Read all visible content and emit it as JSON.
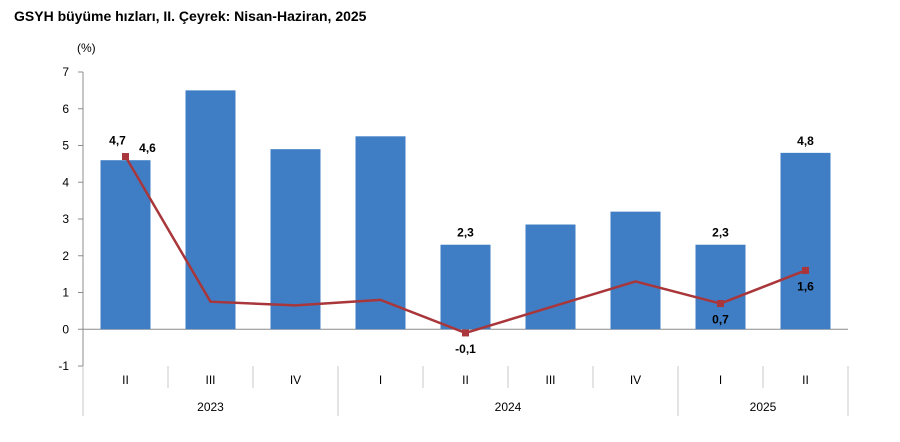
{
  "chart_data": {
    "type": "bar",
    "title": "GSYH büyüme hızları, II. Çeyrek: Nisan-Haziran, 2025",
    "ylabel": "(%)",
    "xlabel": "",
    "ylim": [
      -1,
      7
    ],
    "yticks": [
      "-1",
      "0",
      "1",
      "2",
      "3",
      "4",
      "5",
      "6",
      "7"
    ],
    "grid": false,
    "legend": "none",
    "categories": [
      "II",
      "III",
      "IV",
      "I",
      "II",
      "III",
      "IV",
      "I",
      "II"
    ],
    "year_groups": [
      {
        "label": "2023",
        "count": 3
      },
      {
        "label": "2024",
        "count": 4
      },
      {
        "label": "2025",
        "count": 2
      }
    ],
    "series": [
      {
        "type": "bar",
        "color": "#3F7EC4",
        "values": [
          4.6,
          6.5,
          4.9,
          5.25,
          2.3,
          2.85,
          3.2,
          2.3,
          4.8
        ],
        "labels": [
          "4,6",
          "",
          "",
          "",
          "2,3",
          "",
          "",
          "2,3",
          "4,8"
        ]
      },
      {
        "type": "line",
        "color": "#A8363A",
        "values": [
          4.7,
          0.75,
          0.65,
          0.8,
          -0.1,
          0.6,
          1.3,
          0.7,
          1.6
        ],
        "labels": [
          "4,7",
          "",
          "",
          "",
          "-0,1",
          "",
          "",
          "0,7",
          "1,6"
        ]
      }
    ]
  }
}
